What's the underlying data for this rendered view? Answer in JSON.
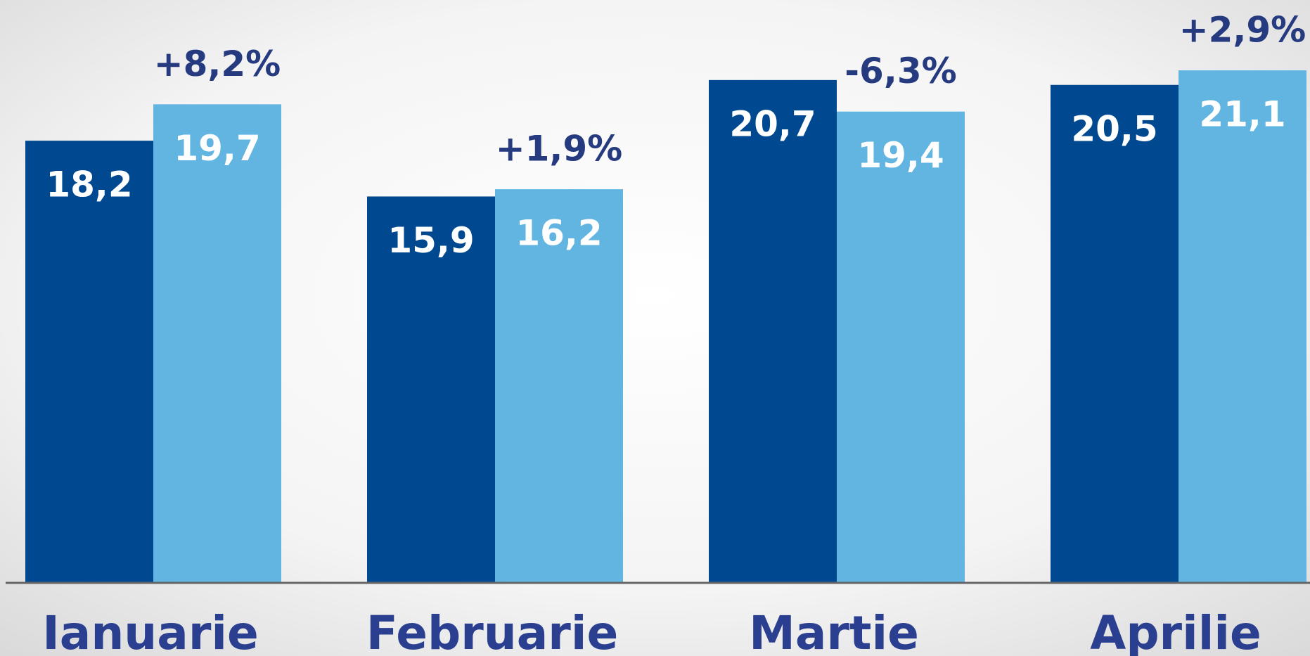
{
  "chart_data": {
    "type": "bar",
    "categories": [
      "Ianuarie",
      "Februarie",
      "Martie",
      "Aprilie"
    ],
    "series": [
      {
        "color": "#004990",
        "values": [
          18.2,
          15.9,
          20.7,
          20.5
        ],
        "value_labels": [
          "18,2",
          "15,9",
          "20,7",
          "20,5"
        ]
      },
      {
        "color": "#62b5e1",
        "values": [
          19.7,
          16.2,
          19.4,
          21.1
        ],
        "value_labels": [
          "19,7",
          "16,2",
          "19,4",
          "21,1"
        ]
      }
    ],
    "annotations": [
      "+8,2%",
      "+1,9%",
      "-6,3%",
      "+2,9%"
    ],
    "ylim": [
      0,
      24
    ]
  }
}
